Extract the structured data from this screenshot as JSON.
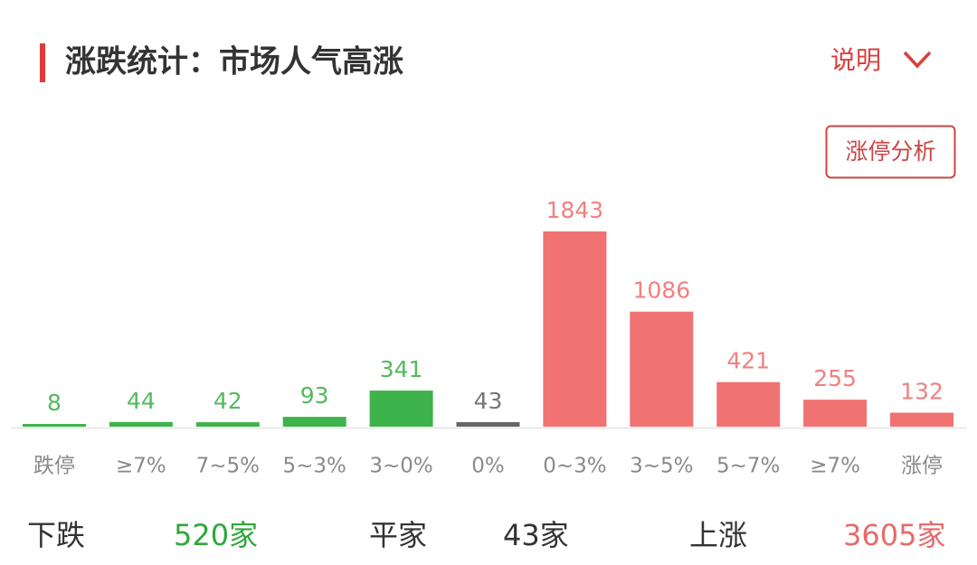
{
  "header": {
    "title": "涨跌统计：市场人气高涨",
    "explain": "说明",
    "button": "涨停分析"
  },
  "chart_data": {
    "type": "bar",
    "categories": [
      "跌停",
      "≥7%",
      "7~5%",
      "5~3%",
      "3~0%",
      "0%",
      "0~3%",
      "3~5%",
      "5~7%",
      "≥7%",
      "涨停"
    ],
    "values": [
      8,
      44,
      42,
      93,
      341,
      43,
      1843,
      1086,
      421,
      255,
      132
    ],
    "colors": [
      "#3fb34b",
      "#3fb34b",
      "#3fb34b",
      "#3fb34b",
      "#3fb34b",
      "#666666",
      "#f07272",
      "#f07272",
      "#f07272",
      "#f07272",
      "#f07272"
    ]
  },
  "summary": [
    {
      "label": "下跌",
      "count": "520家",
      "color": "#2ea83a"
    },
    {
      "label": "平家",
      "count": "43家",
      "color": "#333333"
    },
    {
      "label": "上涨",
      "count": "3605家",
      "color": "#e86a6a"
    }
  ]
}
